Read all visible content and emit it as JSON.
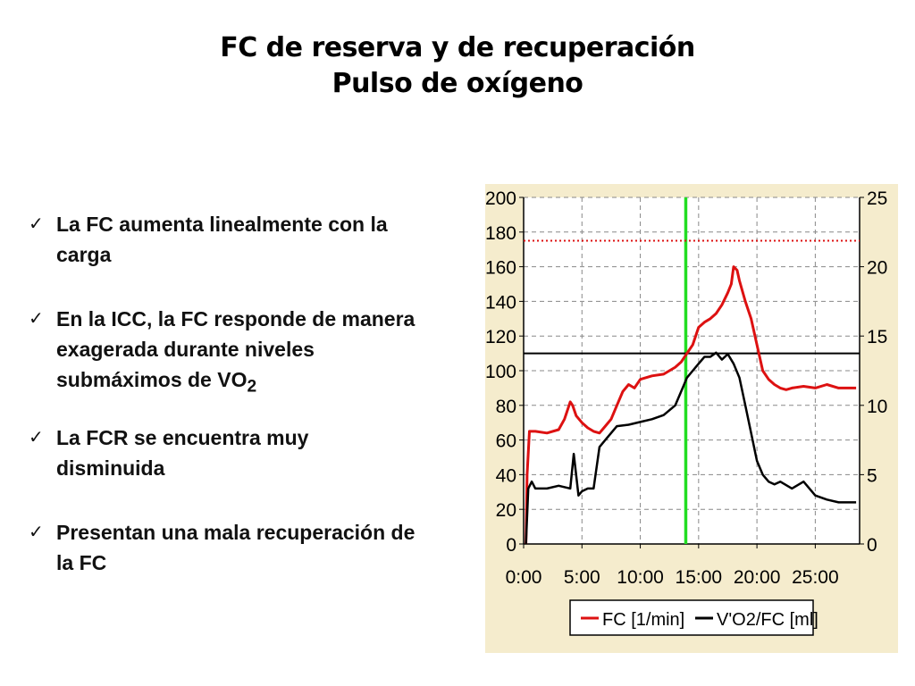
{
  "slide": {
    "title_line1": "FC de reserva y de recuperación",
    "title_line2": "Pulso de oxígeno"
  },
  "bullets": [
    {
      "check": "✓",
      "text": "La FC aumenta linealmente con la carga"
    },
    {
      "check": "✓",
      "text": "En la ICC, la FC responde de manera exagerada durante niveles submáximos de VO",
      "sub": "2"
    },
    {
      "check": "✓",
      "text": "La FCR se encuentra muy disminuida"
    },
    {
      "check": "✓",
      "text": "Presentan una mala recuperación de la FC"
    }
  ],
  "colors": {
    "background": "#f5eccd",
    "plot_background": "#ffffff",
    "fc_series": "#dd1111",
    "vo2fc_series": "#000000",
    "marker_line": "#22dd22",
    "max_hr_line": "#dd1111",
    "grid": "#888888"
  },
  "chart_data": {
    "type": "line",
    "grid": true,
    "legend_position": "bottom",
    "x_ticks": [
      "0:00",
      "5:00",
      "10:00",
      "15:00",
      "20:00",
      "25:00"
    ],
    "x_tick_values": [
      0,
      5,
      10,
      15,
      20,
      25
    ],
    "xlim": [
      0,
      28.8
    ],
    "y_left_ticks": [
      "200",
      "180",
      "160",
      "140",
      "120",
      "100",
      "80",
      "60",
      "40",
      "20",
      "0"
    ],
    "y_left_tick_values": [
      200,
      180,
      160,
      140,
      120,
      100,
      80,
      60,
      40,
      20,
      0
    ],
    "ylim_left": [
      0,
      200
    ],
    "y_right_ticks": [
      "25",
      "20",
      "15",
      "10",
      "5",
      "0"
    ],
    "y_right_tick_values": [
      25,
      20,
      15,
      10,
      5,
      0
    ],
    "ylim_right": [
      0,
      25
    ],
    "reference_lines": [
      {
        "axis": "x",
        "value": 13.9,
        "style": "solid-green"
      },
      {
        "axis": "y_left",
        "value": 175,
        "style": "dotted-red"
      },
      {
        "axis": "y_left",
        "value": 110,
        "style": "solid-black"
      }
    ],
    "series": [
      {
        "name": "FC [1/min]",
        "axis": "left",
        "x": [
          0.2,
          0.3,
          0.5,
          1.0,
          2.0,
          3.0,
          3.5,
          4.0,
          4.2,
          4.5,
          5.0,
          5.5,
          6.0,
          6.5,
          7.0,
          7.5,
          8.0,
          8.5,
          9.0,
          9.5,
          10.0,
          11.0,
          12.0,
          12.5,
          13.0,
          13.5,
          14.0,
          14.5,
          15.0,
          15.5,
          16.0,
          16.5,
          17.0,
          17.5,
          17.8,
          18.0,
          18.3,
          18.5,
          19.0,
          19.5,
          20.0,
          20.5,
          21.0,
          21.5,
          22.0,
          22.5,
          23.0,
          24.0,
          25.0,
          26.0,
          27.0,
          28.5
        ],
        "values": [
          0,
          40,
          65,
          65,
          64,
          66,
          72,
          82,
          80,
          74,
          70,
          67,
          65,
          64,
          68,
          72,
          80,
          88,
          92,
          90,
          95,
          97,
          98,
          100,
          102,
          105,
          110,
          115,
          125,
          128,
          130,
          133,
          138,
          145,
          150,
          160,
          158,
          152,
          140,
          130,
          115,
          100,
          95,
          92,
          90,
          89,
          90,
          91,
          90,
          92,
          90,
          90
        ]
      },
      {
        "name": "V'O2/FC [ml]",
        "axis": "right",
        "x": [
          0.2,
          0.4,
          0.7,
          1.0,
          2.0,
          3.0,
          4.0,
          4.3,
          4.7,
          5.0,
          5.5,
          6.0,
          6.5,
          7.0,
          7.5,
          8.0,
          9.0,
          10.0,
          11.0,
          12.0,
          13.0,
          13.5,
          14.0,
          14.5,
          15.0,
          15.5,
          16.0,
          16.5,
          17.0,
          17.5,
          18.0,
          18.5,
          19.0,
          19.5,
          20.0,
          20.5,
          21.0,
          21.5,
          22.0,
          23.0,
          24.0,
          25.0,
          26.0,
          27.0,
          28.5
        ],
        "values": [
          0,
          4,
          4.5,
          4.0,
          4.0,
          4.2,
          4.0,
          6.5,
          3.5,
          3.8,
          4.0,
          4.0,
          7.0,
          7.5,
          8.0,
          8.5,
          8.6,
          8.8,
          9.0,
          9.3,
          10.0,
          11.0,
          12.0,
          12.5,
          13.0,
          13.5,
          13.5,
          13.8,
          13.3,
          13.7,
          13.0,
          12.0,
          10.0,
          8.0,
          6.0,
          5.0,
          4.5,
          4.3,
          4.5,
          4.0,
          4.5,
          3.5,
          3.2,
          3.0,
          3.0
        ]
      }
    ],
    "legend": {
      "fc_label": "FC [1/min]",
      "vo2_label": "V'O2/FC [ml]"
    }
  }
}
